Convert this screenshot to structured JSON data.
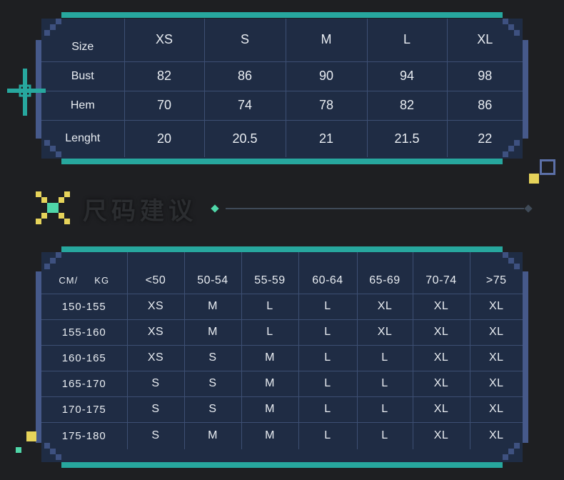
{
  "size_chart": {
    "header": [
      "Size",
      "XS",
      "S",
      "M",
      "L",
      "XL"
    ],
    "rows": [
      {
        "label": "Bust",
        "values": [
          "82",
          "86",
          "90",
          "94",
          "98"
        ]
      },
      {
        "label": "Hem",
        "values": [
          "70",
          "74",
          "78",
          "82",
          "86"
        ]
      },
      {
        "label": "Lenght",
        "values": [
          "20",
          "20.5",
          "21",
          "21.5",
          "22"
        ]
      }
    ]
  },
  "section": {
    "title": "尺码建议"
  },
  "recommendation": {
    "corner_label": "CM/     KG",
    "header": [
      "<50",
      "50-54",
      "55-59",
      "60-64",
      "65-69",
      "70-74",
      ">75"
    ],
    "rows": [
      {
        "label": "150-155",
        "values": [
          "XS",
          "M",
          "L",
          "L",
          "XL",
          "XL",
          "XL"
        ]
      },
      {
        "label": "155-160",
        "values": [
          "XS",
          "M",
          "L",
          "L",
          "XL",
          "XL",
          "XL"
        ]
      },
      {
        "label": "160-165",
        "values": [
          "XS",
          "S",
          "M",
          "L",
          "L",
          "XL",
          "XL"
        ]
      },
      {
        "label": "165-170",
        "values": [
          "S",
          "S",
          "M",
          "L",
          "L",
          "XL",
          "XL"
        ]
      },
      {
        "label": "170-175",
        "values": [
          "S",
          "S",
          "M",
          "L",
          "L",
          "XL",
          "XL"
        ]
      },
      {
        "label": "175-180",
        "values": [
          "S",
          "M",
          "M",
          "L",
          "L",
          "XL",
          "XL"
        ]
      }
    ]
  },
  "colors": {
    "teal": "#27a79e",
    "navy": "#1f2c44",
    "yellow": "#e6d35a",
    "mint": "#4fd6a8"
  }
}
